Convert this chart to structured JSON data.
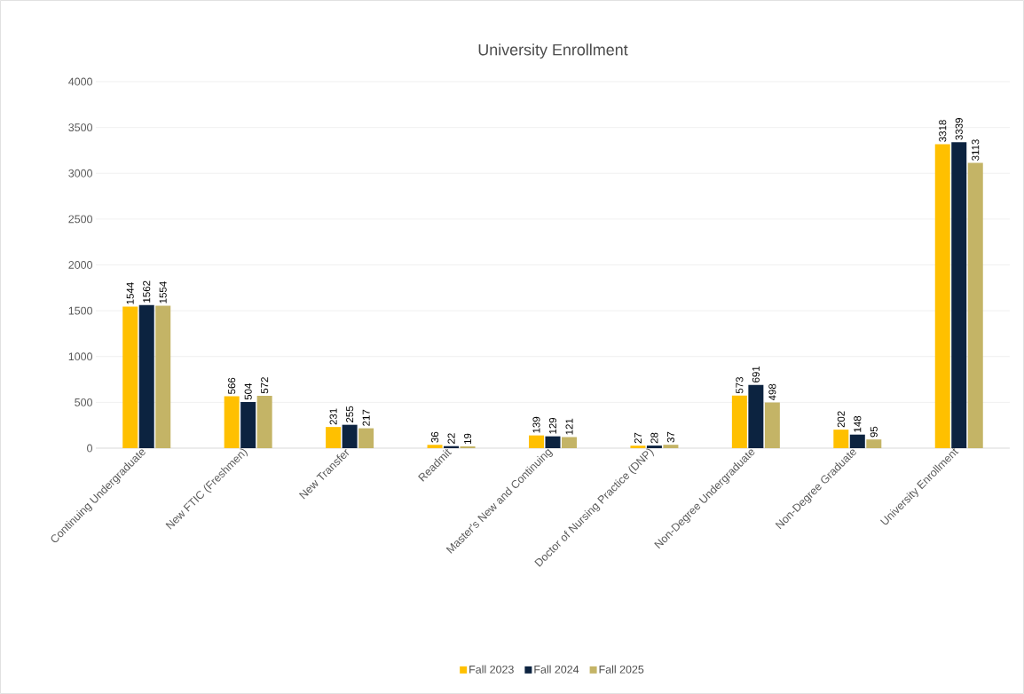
{
  "chart_data": {
    "type": "bar",
    "title": "University Enrollment",
    "categories": [
      "Continuing Undergraduate",
      "New FTIC (Freshmen)",
      "New Transfer",
      "Readmit",
      "Master's New and Continuing",
      "Doctor of Nursing Practice (DNP)",
      "Non-Degree Undergraduate",
      "Non-Degree Graduate",
      "University Enrollment"
    ],
    "series": [
      {
        "name": "Fall 2023",
        "color": "#ffc000",
        "values": [
          1544,
          566,
          231,
          36,
          139,
          27,
          573,
          202,
          3318
        ]
      },
      {
        "name": "Fall 2024",
        "color": "#0c2340",
        "values": [
          1562,
          504,
          255,
          22,
          129,
          28,
          691,
          148,
          3339
        ]
      },
      {
        "name": "Fall 2025",
        "color": "#c4b466",
        "values": [
          1554,
          572,
          217,
          19,
          121,
          37,
          498,
          95,
          3113
        ]
      }
    ],
    "ylim": [
      0,
      4000
    ],
    "yticks": [
      0,
      500,
      1000,
      1500,
      2000,
      2500,
      3000,
      3500,
      4000
    ],
    "grid": "y",
    "legend": "bottom",
    "data_labels": true
  }
}
